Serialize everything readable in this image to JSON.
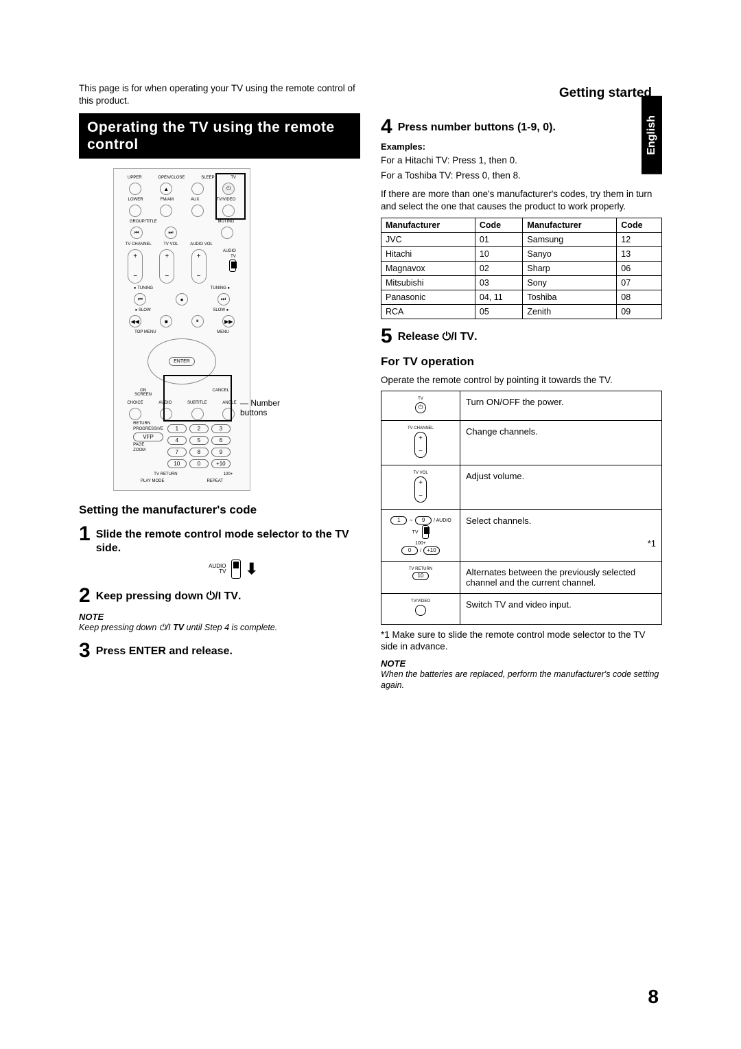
{
  "header": {
    "section": "Getting started",
    "language": "English"
  },
  "intro": "This page is for when operating your TV using the remote control of this product.",
  "section_title": "Operating the TV using the remote control",
  "remote": {
    "top_labels": [
      "UPPER",
      "OPEN/CLOSE",
      "SLEEP",
      "TV"
    ],
    "row2_labels": [
      "LOWER",
      "FM/AM",
      "AUX",
      "TV/VIDEO"
    ],
    "row3_labels": [
      "GROUP/TITLE",
      "",
      "",
      "MUTING"
    ],
    "rocker_labels": [
      "TV CHANNEL",
      "TV VOL",
      "AUDIO VOL"
    ],
    "switch_labels": "AUDIO\nTV",
    "tuning_left": "TUNING",
    "tuning_right": "TUNING",
    "slow_left": "SLOW",
    "slow_right": "SLOW",
    "top_menu": "TOP MENU",
    "menu": "MENU",
    "enter": "ENTER",
    "onscreen": "ON\nSCREEN",
    "cancel": "CANCEL",
    "row_choice": [
      "CHOICE",
      "AUDIO",
      "SUBTITLE",
      "ANGLE"
    ],
    "return": "RETURN",
    "progressive": "PROGRESSIVE",
    "vfp": "VFP",
    "page": "PAGE",
    "zoom": "ZOOM",
    "tvreturn": "TV RETURN",
    "hundred": "100+",
    "playmode": "PLAY MODE",
    "repeat": "REPEAT",
    "callout": "Number buttons"
  },
  "sub1": "Setting the manufacturer's code",
  "steps": {
    "s1": {
      "n": "1",
      "t": "Slide the remote control mode selector to the TV side."
    },
    "s2": {
      "n": "2",
      "t": "Keep pressing down ⏻/I TV."
    },
    "s3": {
      "n": "3",
      "t": "Press ENTER and release."
    },
    "s4": {
      "n": "4",
      "t": "Press number buttons (1-9, 0)."
    },
    "s5": {
      "n": "5",
      "t": "Release ⏻/I TV."
    }
  },
  "switch_icon": {
    "l1": "AUDIO",
    "l2": "TV"
  },
  "note1": {
    "label": "NOTE",
    "text": "Keep pressing down ⏻/I TV until Step 4 is complete."
  },
  "examples": {
    "label": "Examples:",
    "line1": "For a Hitachi TV: Press 1, then 0.",
    "line2": "For a Toshiba TV: Press 0, then 8."
  },
  "multi_code_text": "If there are more than one's manufacturer's codes, try them in turn and select the one that causes the product to work properly.",
  "code_table": {
    "headers": [
      "Manufacturer",
      "Code",
      "Manufacturer",
      "Code"
    ],
    "rows": [
      [
        "JVC",
        "01",
        "Samsung",
        "12"
      ],
      [
        "Hitachi",
        "10",
        "Sanyo",
        "13"
      ],
      [
        "Magnavox",
        "02",
        "Sharp",
        "06"
      ],
      [
        "Mitsubishi",
        "03",
        "Sony",
        "07"
      ],
      [
        "Panasonic",
        "04, 11",
        "Toshiba",
        "08"
      ],
      [
        "RCA",
        "05",
        "Zenith",
        "09"
      ]
    ]
  },
  "sub2": "For TV operation",
  "op_intro": "Operate the remote control by pointing it towards the TV.",
  "op_table": {
    "rows": [
      {
        "icon": "power",
        "label": "TV",
        "desc": "Turn ON/OFF the power."
      },
      {
        "icon": "rocker",
        "label": "TV CHANNEL",
        "desc": "Change channels."
      },
      {
        "icon": "rocker",
        "label": "TV VOL",
        "desc": "Adjust volume."
      },
      {
        "icon": "numselect",
        "label": "",
        "desc": "Select channels.",
        "foot": "*1"
      },
      {
        "icon": "tvreturn",
        "label": "TV RETURN",
        "desc": "Alternates between the previously selected channel and the current channel."
      },
      {
        "icon": "tvvideo",
        "label": "TV/VIDEO",
        "desc": "Switch TV and video input."
      }
    ]
  },
  "footnote": "*1 Make sure to slide the remote control mode selector to the TV side in advance.",
  "note2": {
    "label": "NOTE",
    "text": "When the batteries are replaced, perform the manufacturer's code setting again."
  },
  "page_number": "8"
}
